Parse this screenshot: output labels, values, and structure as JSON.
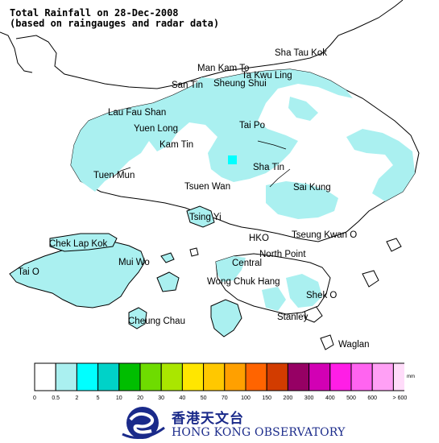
{
  "header": {
    "title_line1": "Total Rainfall on 28-Dec-2008",
    "title_line2": "(based on raingauges and radar data)"
  },
  "places": {
    "sha_tau_kok": "Sha Tau Kok",
    "man_kam_to": "Man Kam To",
    "ta_kwu_ling": "Ta Kwu Ling",
    "san_tin": "San Tin",
    "sheung_shui": "Sheung Shui",
    "lau_fau_shan": "Lau Fau Shan",
    "yuen_long": "Yuen Long",
    "tai_po": "Tai Po",
    "kam_tin": "Kam Tin",
    "sha_tin": "Sha Tin",
    "tuen_mun": "Tuen Mun",
    "tsuen_wan": "Tsuen Wan",
    "sai_kung": "Sai Kung",
    "tsing_yi": "Tsing Yi",
    "chek_lap_kok": "Chek Lap Kok",
    "hko": "HKO",
    "tseung_kwan_o": "Tseung Kwan O",
    "mui_wo": "Mui Wo",
    "central": "Central",
    "north_point": "North Point",
    "tai_o": "Tai O",
    "wong_chuk_hang": "Wong Chuk Hang",
    "shek_o": "Shek O",
    "cheung_chau": "Cheung Chau",
    "stanley": "Stanley",
    "waglan": "Waglan"
  },
  "legend": {
    "unit": "mm",
    "colors": [
      "#ffffff",
      "#aaf0f0",
      "#00ffff",
      "#00d2c8",
      "#00be00",
      "#6edc00",
      "#aae600",
      "#ffe600",
      "#ffc800",
      "#ffa000",
      "#ff6400",
      "#d23c00",
      "#960064",
      "#d200b4",
      "#ff1ee6",
      "#ff64f0",
      "#ffa0f5",
      "#ffdcfa"
    ],
    "ticks": [
      "0",
      "0.5",
      "2",
      "5",
      "10",
      "20",
      "30",
      "40",
      "50",
      "70",
      "100",
      "150",
      "200",
      "300",
      "400",
      "500",
      "600",
      "> 600"
    ]
  },
  "logo": {
    "name_cn": "香港天文台",
    "name_en": "HONG KONG OBSERVATORY",
    "emblem": "hko-emblem-icon"
  }
}
